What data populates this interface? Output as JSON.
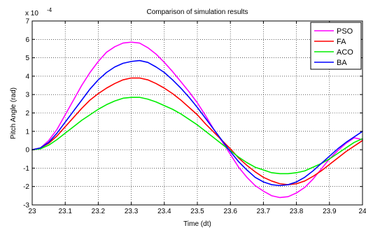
{
  "chart_data": {
    "type": "line",
    "title": "Comparison of simulation results",
    "xlabel": "Time (dt)",
    "ylabel": "Pitch Angle (rad)",
    "y_exponent_label": "x 10",
    "y_exponent_power": "-4",
    "xlim": [
      23,
      24
    ],
    "ylim": [
      -3,
      7
    ],
    "x_ticks": [
      23,
      23.1,
      23.2,
      23.3,
      23.4,
      23.5,
      23.6,
      23.7,
      23.8,
      23.9,
      24
    ],
    "x_tick_labels": [
      "23",
      "23.1",
      "23.2",
      "23.3",
      "23.4",
      "23.5",
      "23.6",
      "23.7",
      "23.8",
      "23.9",
      "24"
    ],
    "y_ticks": [
      -3,
      -2,
      -1,
      0,
      1,
      2,
      3,
      4,
      5,
      6,
      7
    ],
    "y_tick_labels": [
      "-3",
      "-2",
      "-1",
      "0",
      "1",
      "2",
      "3",
      "4",
      "5",
      "6",
      "7"
    ],
    "grid": true,
    "legend_position": "top-right",
    "x": [
      23.0,
      23.025,
      23.05,
      23.075,
      23.1,
      23.125,
      23.15,
      23.175,
      23.2,
      23.225,
      23.25,
      23.275,
      23.3,
      23.325,
      23.35,
      23.375,
      23.4,
      23.425,
      23.45,
      23.475,
      23.5,
      23.525,
      23.55,
      23.575,
      23.6,
      23.625,
      23.65,
      23.675,
      23.7,
      23.725,
      23.75,
      23.775,
      23.8,
      23.825,
      23.85,
      23.875,
      23.9,
      23.925,
      23.95,
      23.975,
      24.0
    ],
    "series": [
      {
        "name": "PSO",
        "color": "#ff00ff",
        "values": [
          0.0,
          0.1,
          0.5,
          1.1,
          1.9,
          2.7,
          3.5,
          4.2,
          4.8,
          5.3,
          5.6,
          5.8,
          5.85,
          5.8,
          5.55,
          5.2,
          4.75,
          4.25,
          3.7,
          3.15,
          2.55,
          1.85,
          1.1,
          0.45,
          -0.25,
          -0.95,
          -1.5,
          -1.95,
          -2.25,
          -2.5,
          -2.6,
          -2.55,
          -2.35,
          -2.05,
          -1.6,
          -1.05,
          -0.5,
          -0.05,
          0.35,
          0.65,
          0.55
        ]
      },
      {
        "name": "FA",
        "color": "#ff0000",
        "values": [
          0.0,
          0.1,
          0.35,
          0.75,
          1.25,
          1.75,
          2.25,
          2.7,
          3.05,
          3.35,
          3.6,
          3.8,
          3.9,
          3.9,
          3.8,
          3.6,
          3.35,
          3.05,
          2.7,
          2.3,
          1.9,
          1.4,
          0.95,
          0.5,
          0.05,
          -0.45,
          -0.85,
          -1.2,
          -1.5,
          -1.7,
          -1.85,
          -1.9,
          -1.85,
          -1.7,
          -1.45,
          -1.15,
          -0.8,
          -0.45,
          -0.1,
          0.2,
          0.5
        ]
      },
      {
        "name": "ACO",
        "color": "#00ee00",
        "values": [
          0.0,
          0.05,
          0.25,
          0.55,
          0.9,
          1.25,
          1.6,
          1.9,
          2.2,
          2.45,
          2.65,
          2.8,
          2.85,
          2.85,
          2.75,
          2.6,
          2.4,
          2.2,
          1.95,
          1.65,
          1.35,
          1.0,
          0.65,
          0.3,
          -0.05,
          -0.4,
          -0.7,
          -0.95,
          -1.1,
          -1.25,
          -1.3,
          -1.3,
          -1.25,
          -1.15,
          -0.95,
          -0.75,
          -0.5,
          -0.2,
          0.1,
          0.4,
          0.6
        ]
      },
      {
        "name": "BA",
        "color": "#0000ff",
        "values": [
          0.0,
          0.1,
          0.4,
          0.9,
          1.5,
          2.1,
          2.7,
          3.3,
          3.8,
          4.2,
          4.5,
          4.7,
          4.8,
          4.85,
          4.75,
          4.5,
          4.2,
          3.8,
          3.35,
          2.85,
          2.3,
          1.7,
          1.1,
          0.5,
          -0.1,
          -0.65,
          -1.1,
          -1.5,
          -1.75,
          -1.9,
          -1.95,
          -1.9,
          -1.75,
          -1.5,
          -1.15,
          -0.75,
          -0.35,
          0.05,
          0.4,
          0.7,
          1.0
        ]
      }
    ]
  }
}
